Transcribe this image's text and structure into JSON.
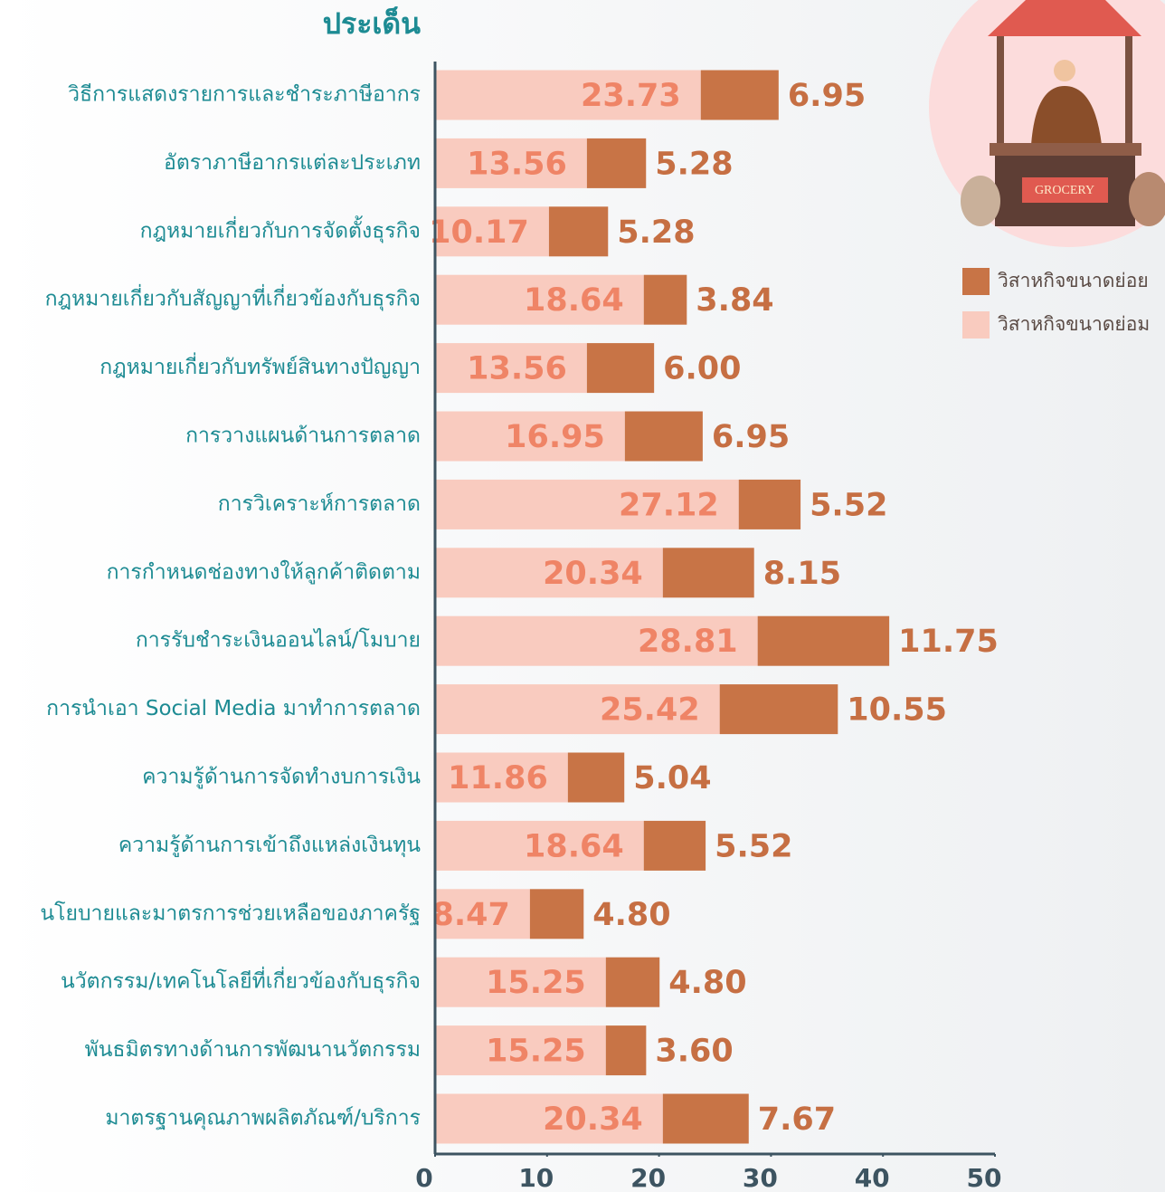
{
  "chart_data": {
    "type": "stacked-barh",
    "title": "ประเด็น",
    "categories": [
      "วิธีการแสดงรายการและชำระภาษีอากร",
      "อัตราภาษีอากรแต่ละประเภท",
      "กฎหมายเกี่ยวกับการจัดตั้งธุรกิจ",
      "กฎหมายเกี่ยวกับสัญญาที่เกี่ยวข้องกับธุรกิจ",
      "กฎหมายเกี่ยวกับทรัพย์สินทางปัญญา",
      "การวางแผนด้านการตลาด",
      "การวิเคราะห์การตลาด",
      "การกำหนดช่องทางให้ลูกค้าติดตาม",
      "การรับชำระเงินออนไลน์/โมบาย",
      "การนำเอา Social Media มาทำการตลาด",
      "ความรู้ด้านการจัดทำงบการเงิน",
      "ความรู้ด้านการเข้าถึงแหล่งเงินทุน",
      "นโยบายและมาตรการช่วยเหลือของภาครัฐ",
      "นวัตกรรม/เทคโนโลยีที่เกี่ยวข้องกับธุรกิจ",
      "พันธมิตรทางด้านการพัฒนานวัตกรรม",
      "มาตรฐานคุณภาพผลิตภัณฑ์/บริการ"
    ],
    "series": [
      {
        "name": "วิสาหกิจขนาดย่อม",
        "color": "#f9cbbf",
        "values": [
          23.73,
          13.56,
          10.17,
          18.64,
          13.56,
          16.95,
          27.12,
          20.34,
          28.81,
          25.42,
          11.86,
          18.64,
          8.47,
          15.25,
          15.25,
          20.34
        ],
        "value_labels": [
          "23.73",
          "13.56",
          "10.17",
          "18.64",
          "13.56",
          "16.95",
          "27.12",
          "20.34",
          "28.81",
          "25.42",
          "11.86",
          "18.64",
          "8.47",
          "15.25",
          "15.25",
          "20.34"
        ]
      },
      {
        "name": "วิสาหกิจขนาดย่อย",
        "color": "#c87446",
        "values": [
          6.95,
          5.28,
          5.28,
          3.84,
          6.0,
          6.95,
          5.52,
          8.15,
          11.75,
          10.55,
          5.04,
          5.52,
          4.8,
          4.8,
          3.6,
          7.67
        ],
        "value_labels": [
          "6.95",
          "5.28",
          "5.28",
          "3.84",
          "6.00",
          "6.95",
          "5.52",
          "8.15",
          "11.75",
          "10.55",
          "5.04",
          "5.52",
          "4.80",
          "4.80",
          "3.60",
          "7.67"
        ]
      }
    ],
    "xlim": [
      0,
      50
    ],
    "xticks": [
      0,
      10,
      20,
      30,
      40,
      50
    ],
    "legend": "upper right"
  },
  "illustration": {
    "sign": "GROCERY"
  }
}
